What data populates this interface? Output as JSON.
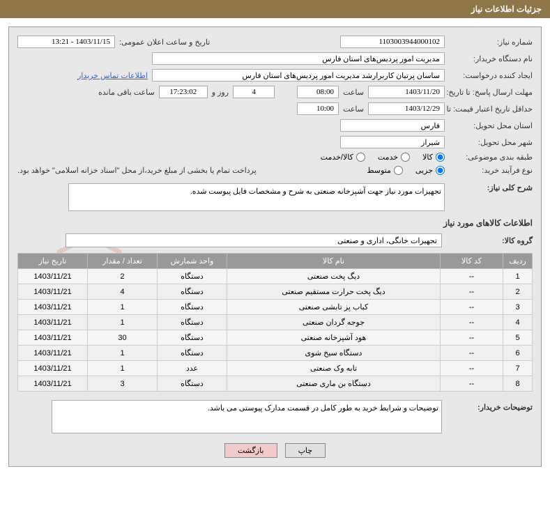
{
  "header": {
    "title": "جزئیات اطلاعات نیاز"
  },
  "fields": {
    "need_no_label": "شماره نیاز:",
    "need_no": "1103003944000102",
    "announce_label": "تاریخ و ساعت اعلان عمومی:",
    "announce_value": "1403/11/15 - 13:21",
    "buyer_org_label": "نام دستگاه خریدار:",
    "buyer_org": "مدیریت امور پردیس‌های استان فارس",
    "requester_label": "ایجاد کننده درخواست:",
    "requester": "ساسان پرتیان کاربرارشد مدیریت امور پردیس‌های استان فارس",
    "contact_link": "اطلاعات تماس خریدار",
    "deadline_send_label": "مهلت ارسال پاسخ: تا تاریخ:",
    "deadline_send_date": "1403/11/20",
    "time_label": "ساعت",
    "deadline_send_time": "08:00",
    "days_count": "4",
    "days_word": "روز و",
    "remaining_time": "17:23:02",
    "remaining_label": "ساعت باقی مانده",
    "validity_label": "حداقل تاریخ اعتبار قیمت: تا تاریخ:",
    "validity_date": "1403/12/29",
    "validity_time": "10:00",
    "province_label": "استان محل تحویل:",
    "province": "فارس",
    "city_label": "شهر محل تحویل:",
    "city": "شیراز",
    "category_label": "طبقه بندی موضوعی:",
    "cat_goods": "کالا",
    "cat_service": "خدمت",
    "cat_goods_service": "کالا/خدمت",
    "process_label": "نوع فرآیند خرید:",
    "proc_partial": "جزیی",
    "proc_medium": "متوسط",
    "payment_note": "پرداخت تمام یا بخشی از مبلغ خرید،از محل \"اسناد خزانه اسلامی\" خواهد بود.",
    "general_desc_label": "شرح کلی نیاز:",
    "general_desc": "تجهیزات مورد نیاز جهت آشپزخانه صنعتی به شرح و مشخصات فایل پیوست شده.",
    "items_section_title": "اطلاعات کالاهای مورد نیاز",
    "group_label": "گروه کالا:",
    "group_value": "تجهیزات خانگی، اداری و صنعتی",
    "buyer_notes_label": "توضیحات خریدار:",
    "buyer_notes": "توضیحات و شرایط خرید به طور کامل در قسمت مدارک پیوستی می باشد."
  },
  "table": {
    "headers": {
      "row": "ردیف",
      "code": "کد کالا",
      "name": "نام کالا",
      "unit": "واحد شمارش",
      "qty": "تعداد / مقدار",
      "date": "تاریخ نیاز"
    },
    "rows": [
      {
        "n": "1",
        "code": "--",
        "name": "دیگ پخت صنعتی",
        "unit": "دستگاه",
        "qty": "2",
        "date": "1403/11/21"
      },
      {
        "n": "2",
        "code": "--",
        "name": "دیگ پخت حرارت مستقیم صنعتی",
        "unit": "دستگاه",
        "qty": "4",
        "date": "1403/11/21"
      },
      {
        "n": "3",
        "code": "--",
        "name": "کباب پز تابشی صنعتی",
        "unit": "دستگاه",
        "qty": "1",
        "date": "1403/11/21"
      },
      {
        "n": "4",
        "code": "--",
        "name": "جوجه گردان صنعتی",
        "unit": "دستگاه",
        "qty": "1",
        "date": "1403/11/21"
      },
      {
        "n": "5",
        "code": "--",
        "name": "هود آشپزخانه صنعتی",
        "unit": "دستگاه",
        "qty": "30",
        "date": "1403/11/21"
      },
      {
        "n": "6",
        "code": "--",
        "name": "دستگاه سیخ شوی",
        "unit": "دستگاه",
        "qty": "1",
        "date": "1403/11/21"
      },
      {
        "n": "7",
        "code": "--",
        "name": "تابه وک صنعتی",
        "unit": "عدد",
        "qty": "1",
        "date": "1403/11/21"
      },
      {
        "n": "8",
        "code": "--",
        "name": "دستگاه بن ماری صنعتی",
        "unit": "دستگاه",
        "qty": "3",
        "date": "1403/11/21"
      }
    ]
  },
  "buttons": {
    "print": "چاپ",
    "back": "بازگشت"
  },
  "colors": {
    "header_bg": "#8f7649",
    "panel_bg": "#e8e8e8",
    "th_bg": "#999999",
    "link": "#3366cc",
    "btn_back_bg": "#f3c9c9",
    "watermark": "#d63c3c"
  }
}
